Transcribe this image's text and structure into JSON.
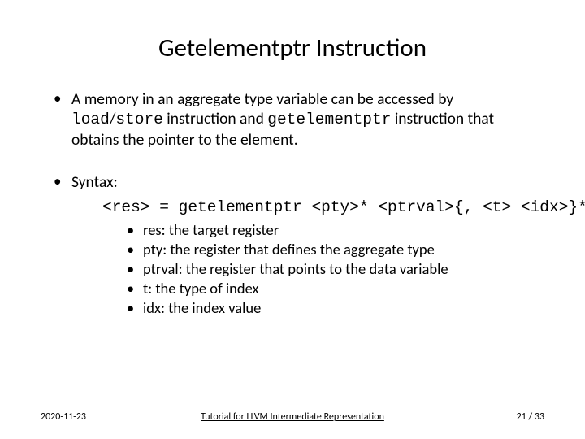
{
  "title": "Getelementptr Instruction",
  "bullets": {
    "b1_pre": "A memory in an aggregate type variable can be accessed by ",
    "b1_code1": "load",
    "b1_slash": "/",
    "b1_code2": "store",
    "b1_mid": " instruction and ",
    "b1_code3": "getelementptr",
    "b1_post": " instruction that obtains the pointer to the element.",
    "b2": "Syntax:"
  },
  "syntax": "<res> = getelementptr <pty>* <ptrval>{, <t> <idx>}*",
  "sub": [
    "res: the target register",
    "pty: the register that defines the aggregate type",
    "ptrval: the register that points to the data variable",
    "t: the type of index",
    "idx: the index value"
  ],
  "footer": {
    "date": "2020-11-23",
    "title": "Tutorial for LLVM Intermediate Representation",
    "page_current": "21",
    "page_sep": " / ",
    "page_total": "33"
  }
}
